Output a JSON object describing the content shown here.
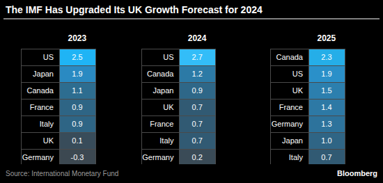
{
  "chart_data": {
    "type": "table",
    "title": "The IMF Has Upgraded Its UK Growth Forecast for 2024",
    "source": "Source: International Monetary Fund",
    "credit": "Bloomberg",
    "data_labels": true,
    "panels": [
      {
        "title": "2023",
        "categories": [
          "US",
          "Japan",
          "Canada",
          "France",
          "Italy",
          "UK",
          "Germany"
        ],
        "values": [
          2.5,
          1.9,
          1.1,
          0.9,
          0.9,
          0.1,
          -0.3
        ],
        "colors": [
          "#1fb4f5",
          "#2a8ac2",
          "#2d6d90",
          "#2e6585",
          "#2e6585",
          "#384c5a",
          "#3c4851"
        ]
      },
      {
        "title": "2024",
        "categories": [
          "US",
          "Canada",
          "Japan",
          "UK",
          "France",
          "Italy",
          "Germany"
        ],
        "values": [
          2.7,
          1.2,
          0.9,
          0.7,
          0.7,
          0.7,
          0.2
        ],
        "colors": [
          "#33bdf8",
          "#2c7aa6",
          "#2e6788",
          "#315a73",
          "#315a73",
          "#315a73",
          "#3a4b57"
        ]
      },
      {
        "title": "2025",
        "categories": [
          "Canada",
          "US",
          "UK",
          "France",
          "Germany",
          "Japan",
          "Italy"
        ],
        "values": [
          2.3,
          1.9,
          1.5,
          1.4,
          1.3,
          1.0,
          0.7
        ],
        "value_labels": [
          "2.3",
          "1.9",
          "1.5",
          "1.4",
          "1.3",
          "1.0",
          "0.7"
        ],
        "colors": [
          "#25aee8",
          "#2a90c9",
          "#2c7fae",
          "#2d79a5",
          "#2d739c",
          "#2f6585",
          "#315a73"
        ]
      }
    ]
  }
}
